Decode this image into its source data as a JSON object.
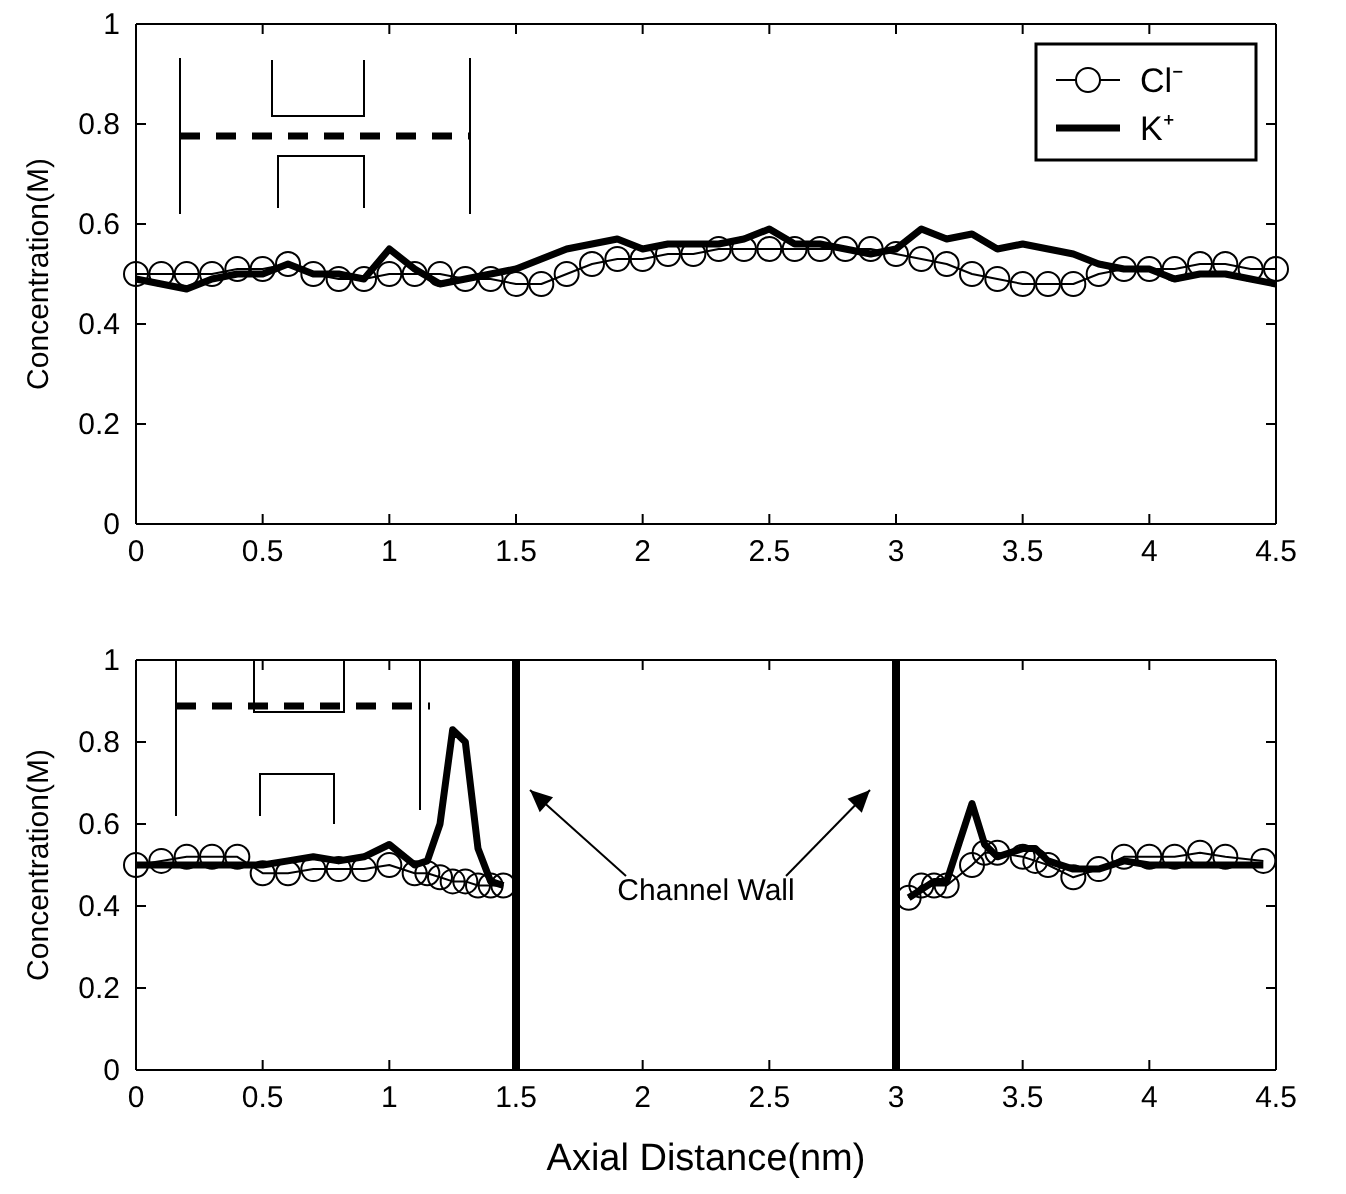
{
  "chart_data": [
    {
      "type": "line",
      "ylabel": "Concentration(M)",
      "legend": "top right",
      "grid": false,
      "tick_labels": true,
      "x": [
        0,
        0.1,
        0.2,
        0.3,
        0.4,
        0.5,
        0.6,
        0.7,
        0.8,
        0.9,
        1,
        1.1,
        1.2,
        1.3,
        1.4,
        1.5,
        1.6,
        1.7,
        1.8,
        1.9,
        2,
        2.1,
        2.2,
        2.3,
        2.4,
        2.5,
        2.6,
        2.7,
        2.8,
        2.9,
        3,
        3.1,
        3.2,
        3.3,
        3.4,
        3.5,
        3.6,
        3.7,
        3.8,
        3.9,
        4,
        4.1,
        4.2,
        4.3,
        4.4,
        4.5
      ],
      "xlim": [
        0,
        4.5
      ],
      "xticks": [
        0,
        0.5,
        1,
        1.5,
        2,
        2.5,
        3,
        3.5,
        4,
        4.5
      ],
      "ylim": [
        0,
        1
      ],
      "yticks": [
        0,
        0.2,
        0.4,
        0.6,
        0.8,
        1
      ],
      "series": [
        {
          "name": "Cl⁻",
          "color": "#000000",
          "marker": "circle",
          "line_style": "solid",
          "values": [
            0.5,
            0.5,
            0.5,
            0.5,
            0.51,
            0.51,
            0.52,
            0.5,
            0.49,
            0.49,
            0.5,
            0.5,
            0.5,
            0.49,
            0.49,
            0.48,
            0.48,
            0.5,
            0.52,
            0.53,
            0.53,
            0.54,
            0.54,
            0.55,
            0.55,
            0.55,
            0.55,
            0.55,
            0.55,
            0.55,
            0.54,
            0.53,
            0.52,
            0.5,
            0.49,
            0.48,
            0.48,
            0.48,
            0.5,
            0.51,
            0.51,
            0.51,
            0.52,
            0.52,
            0.51,
            0.51
          ]
        },
        {
          "name": "K⁺",
          "color": "#000000",
          "marker": "none",
          "line_style": "solid",
          "values": [
            0.49,
            0.48,
            0.47,
            0.49,
            0.5,
            0.5,
            0.52,
            0.5,
            0.5,
            0.49,
            0.55,
            0.51,
            0.48,
            0.49,
            0.5,
            0.51,
            0.53,
            0.55,
            0.56,
            0.57,
            0.55,
            0.56,
            0.56,
            0.56,
            0.57,
            0.59,
            0.56,
            0.56,
            0.55,
            0.54,
            0.55,
            0.59,
            0.57,
            0.58,
            0.55,
            0.56,
            0.55,
            0.54,
            0.52,
            0.51,
            0.51,
            0.49,
            0.5,
            0.5,
            0.49,
            0.48
          ]
        }
      ]
    },
    {
      "type": "line",
      "xlabel": "Axial Distance(nm)",
      "ylabel": "Concentration(M)",
      "legend": false,
      "grid": false,
      "tick_labels": true,
      "x": [
        0,
        0.1,
        0.2,
        0.3,
        0.4,
        0.5,
        0.6,
        0.7,
        0.8,
        0.9,
        1,
        1.1,
        1.15,
        1.2,
        1.25,
        1.3,
        1.35,
        1.4,
        1.45,
        2.25,
        3.05,
        3.1,
        3.15,
        3.2,
        3.3,
        3.35,
        3.4,
        3.5,
        3.55,
        3.6,
        3.7,
        3.8,
        3.9,
        4,
        4.1,
        4.2,
        4.3,
        4.45
      ],
      "xlim": [
        0,
        4.5
      ],
      "xticks": [
        0,
        0.5,
        1,
        1.5,
        2,
        2.5,
        3,
        3.5,
        4,
        4.5
      ],
      "ylim": [
        0,
        1
      ],
      "yticks": [
        0,
        0.2,
        0.4,
        0.6,
        0.8,
        1
      ],
      "series": [
        {
          "color": "#000000",
          "marker": "circle",
          "line_style": "solid",
          "values": [
            0.5,
            0.51,
            0.52,
            0.52,
            0.52,
            0.48,
            0.48,
            0.49,
            0.49,
            0.49,
            0.5,
            0.48,
            0.48,
            0.47,
            0.46,
            0.46,
            0.45,
            0.45,
            0.45,
            null,
            0.42,
            0.45,
            0.45,
            0.45,
            0.5,
            0.53,
            0.53,
            0.52,
            0.51,
            0.5,
            0.47,
            0.49,
            0.52,
            0.52,
            0.52,
            0.53,
            0.52,
            0.51
          ]
        },
        {
          "color": "#000000",
          "marker": "none",
          "line_style": "solid",
          "values": [
            0.5,
            0.5,
            0.5,
            0.5,
            0.5,
            0.5,
            0.51,
            0.52,
            0.51,
            0.52,
            0.55,
            0.5,
            0.51,
            0.6,
            0.83,
            0.8,
            0.54,
            0.46,
            0.45,
            null,
            0.42,
            0.44,
            0.46,
            0.46,
            0.65,
            0.55,
            0.52,
            0.54,
            0.54,
            0.51,
            0.49,
            0.49,
            0.51,
            0.5,
            0.5,
            0.5,
            0.5,
            0.5
          ]
        }
      ],
      "ref_lines": [
        {
          "axis": "x",
          "value": 1.5,
          "color": "#000000"
        },
        {
          "axis": "x",
          "value": 3,
          "color": "#000000"
        }
      ],
      "annotations": [
        "Channel Wall"
      ]
    }
  ]
}
